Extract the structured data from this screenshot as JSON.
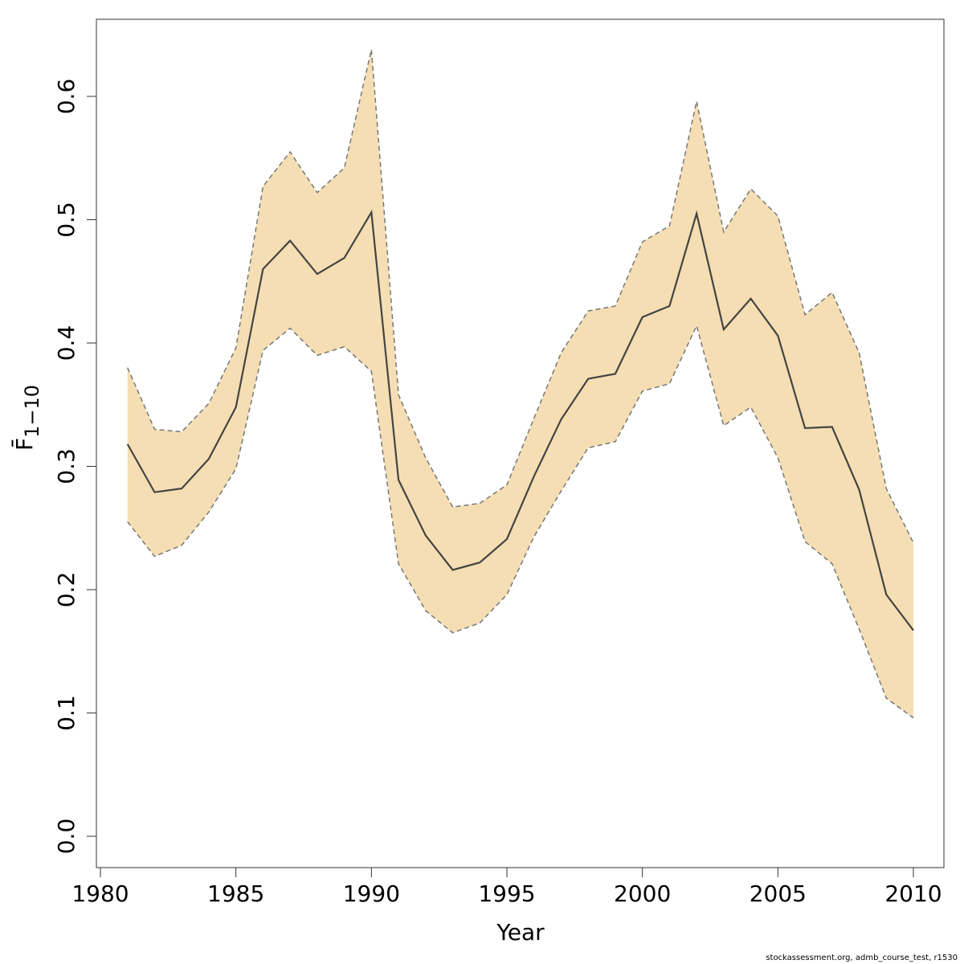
{
  "chart_data": {
    "type": "line",
    "xlabel": "Year",
    "ylabel": "F̄",
    "ylabel_subscript": "1−10",
    "xlim": [
      1980,
      2011
    ],
    "ylim": [
      0,
      0.65
    ],
    "x_ticks": [
      1980,
      1985,
      1990,
      1995,
      2000,
      2005,
      2010
    ],
    "x_tick_labels": [
      "1980",
      "1985",
      "1990",
      "1995",
      "2000",
      "2005",
      "2010"
    ],
    "y_ticks": [
      0,
      0.1,
      0.2,
      0.3,
      0.4,
      0.5,
      0.6
    ],
    "y_tick_labels": [
      "0.0",
      "0.1",
      "0.2",
      "0.3",
      "0.4",
      "0.5",
      "0.6"
    ],
    "grid": false,
    "band_color": "#f5deb3",
    "line_color": "#444444",
    "bound_color": "#777777",
    "x": [
      1981,
      1982,
      1983,
      1984,
      1985,
      1986,
      1987,
      1988,
      1989,
      1990,
      1991,
      1992,
      1993,
      1994,
      1995,
      1996,
      1997,
      1998,
      1999,
      2000,
      2001,
      2002,
      2003,
      2004,
      2005,
      2006,
      2007,
      2008,
      2009,
      2010
    ],
    "series": [
      {
        "values": [
          0.318,
          0.279,
          0.282,
          0.306,
          0.348,
          0.46,
          0.483,
          0.456,
          0.469,
          0.506,
          0.289,
          0.244,
          0.216,
          0.222,
          0.241,
          0.292,
          0.338,
          0.371,
          0.375,
          0.421,
          0.43,
          0.505,
          0.411,
          0.436,
          0.406,
          0.331,
          0.332,
          0.281,
          0.196,
          0.167
        ]
      },
      {
        "values": [
          0.38,
          0.33,
          0.328,
          0.351,
          0.396,
          0.527,
          0.555,
          0.522,
          0.542,
          0.638,
          0.358,
          0.307,
          0.267,
          0.27,
          0.285,
          0.339,
          0.392,
          0.426,
          0.43,
          0.482,
          0.495,
          0.596,
          0.49,
          0.525,
          0.503,
          0.423,
          0.441,
          0.392,
          0.282,
          0.238
        ]
      },
      {
        "values": [
          0.255,
          0.227,
          0.236,
          0.263,
          0.298,
          0.394,
          0.412,
          0.39,
          0.397,
          0.377,
          0.221,
          0.183,
          0.165,
          0.173,
          0.196,
          0.243,
          0.28,
          0.315,
          0.32,
          0.361,
          0.367,
          0.414,
          0.333,
          0.348,
          0.307,
          0.239,
          0.221,
          0.168,
          0.112,
          0.096
        ]
      }
    ]
  },
  "footer": "stockassessment.org, admb_course_test, r1530"
}
